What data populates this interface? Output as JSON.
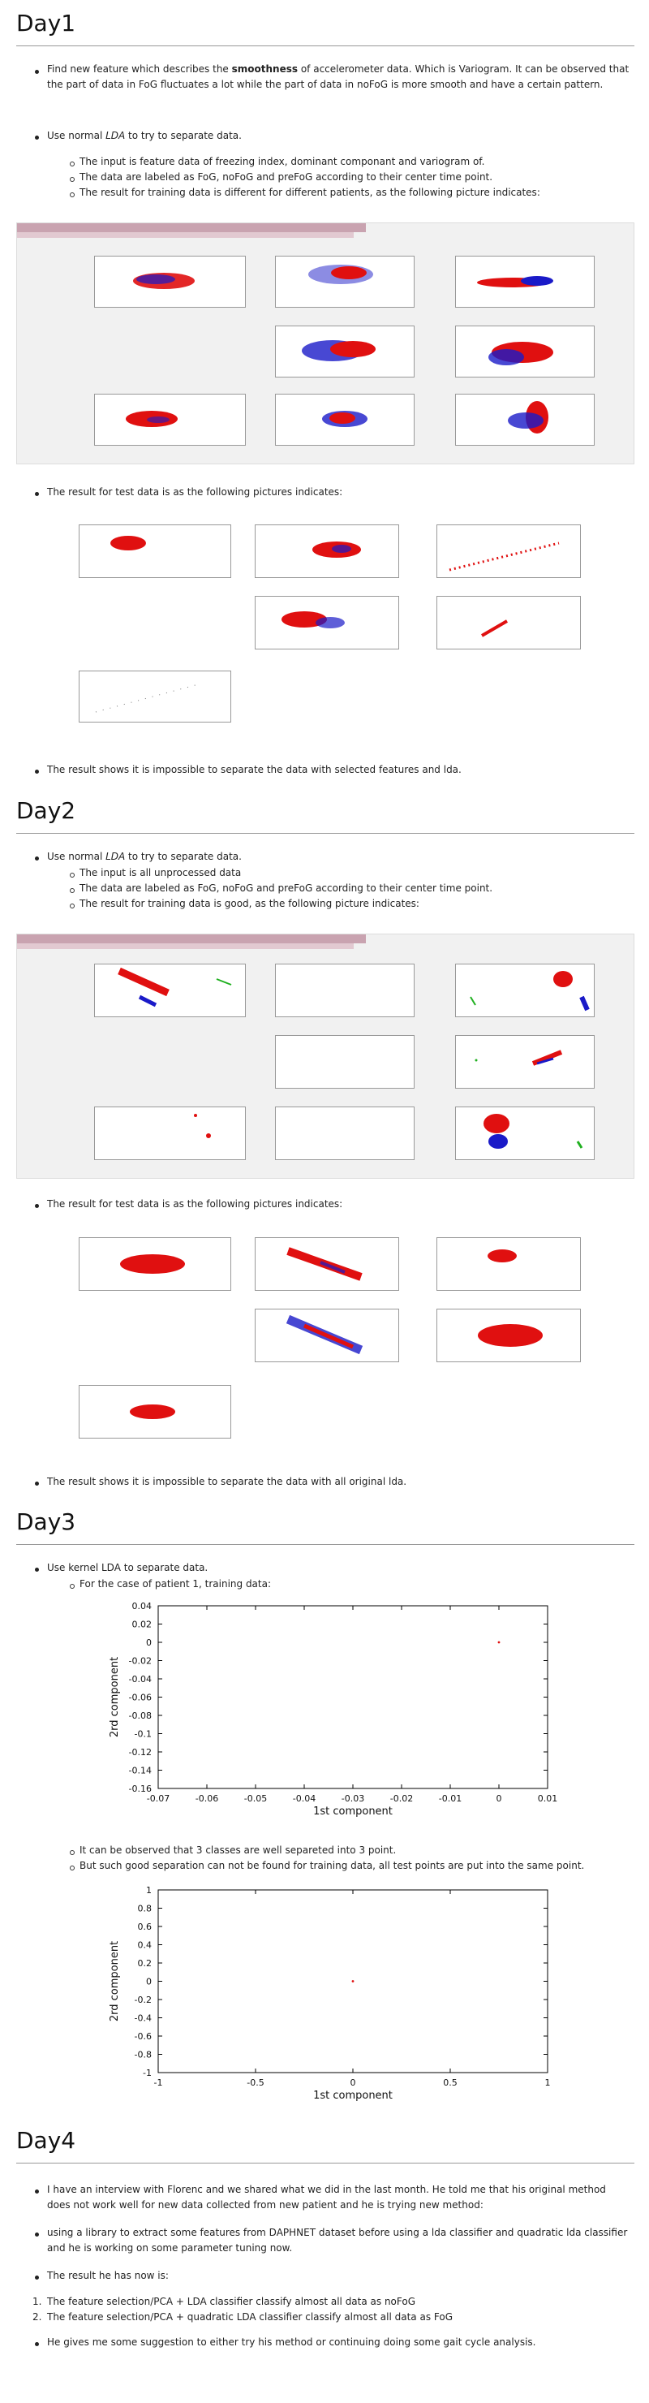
{
  "day1": {
    "title": "Day1",
    "bullet1_pre": "Find new feature which describes the ",
    "bullet1_bold": "smoothness",
    "bullet1_post": " of accelerometer data. Which is Variogram. It can be observed that the part of data in FoG fluctuates a lot while the part of data in noFoG is more smooth and have a certain pattern.",
    "bullet2_pre": "Use normal ",
    "bullet2_em": "LDA",
    "bullet2_post": " to try to separate data.",
    "sub1": "The input is feature data of freezing index, dominant componant and variogram of.",
    "sub2": "The data are labeled as FoG, noFoG and preFoG according to their center time point.",
    "sub3": "The result for training data is different for different patients, as the following picture indicates:",
    "bullet3": "The result for test data is as the following pictures indicates:",
    "bullet4": "The result shows it is impossible to separate the data with selected features and lda."
  },
  "day2": {
    "title": "Day2",
    "bullet1_pre": "Use normal ",
    "bullet1_em": "LDA",
    "bullet1_post": " to try to separate data.",
    "sub1": "The input is all unprocessed data",
    "sub2": "The data are labeled as FoG, noFoG and preFoG according to their center time point.",
    "sub3": "The result for training data is good, as the following picture indicates:",
    "bullet2": "The result for test data is as the following pictures indicates:",
    "bullet3": "The result shows it is impossible to separate the data with all original lda."
  },
  "day3": {
    "title": "Day3",
    "bullet1": "Use kernel LDA to separate data.",
    "sub1": "For the case of patient 1, training data:",
    "sub2": "It can be observed that 3 classes are well separeted into 3 point.",
    "sub3": "But such good separation can not be found for training data, all test points are put into the same point."
  },
  "day4": {
    "title": "Day4",
    "bullet1": "I have an interview with Florenc and we shared what we did in the last month. He told me that his original method does not work well for new data collected from new patient and he is trying new method:",
    "bullet2": "using a library to extract some features from DAPHNET dataset before using a lda classifier and quadratic lda classifier and he is working on some parameter tuning now.",
    "bullet3": "The result he has now is:",
    "ol1_num": "1.",
    "ol1": "The feature selection/PCA + LDA classifier classify almost all data as noFoG",
    "ol2_num": "2.",
    "ol2": "The feature selection/PCA + quadratic LDA classifier classify almost all data as FoG",
    "bullet4": "He gives me some suggestion to either try his method or continuing doing some gait cycle analysis."
  },
  "colors": {
    "fog": "#e01010",
    "nofog": "#1a1ac8",
    "prefog": "#20b020"
  },
  "chart_data": [
    {
      "type": "scatter",
      "xlabel": "1st component",
      "ylabel": "2rd component",
      "xlim": [
        -0.07,
        0.01
      ],
      "ylim": [
        -0.16,
        0.04
      ],
      "xticks": [
        "-0.07",
        "-0.06",
        "-0.05",
        "-0.04",
        "-0.03",
        "-0.02",
        "-0.01",
        "0",
        "0.01"
      ],
      "yticks": [
        "0.04",
        "0.02",
        "0",
        "-0.02",
        "-0.04",
        "-0.06",
        "-0.08",
        "-0.1",
        "-0.12",
        "-0.14",
        "-0.16"
      ],
      "points": [
        {
          "x": 0.0,
          "y": 0.0
        }
      ],
      "grid": false
    },
    {
      "type": "scatter",
      "xlabel": "1st component",
      "ylabel": "2rd component",
      "xlim": [
        -1,
        1
      ],
      "ylim": [
        -1,
        1
      ],
      "xticks": [
        "-1",
        "-0.5",
        "0",
        "0.5",
        "1"
      ],
      "yticks": [
        "1",
        "0.8",
        "0.6",
        "0.4",
        "0.2",
        "0",
        "-0.2",
        "-0.4",
        "-0.6",
        "-0.8",
        "-1"
      ],
      "points": [
        {
          "x": 0.0,
          "y": 0.0
        }
      ],
      "grid": false
    }
  ]
}
